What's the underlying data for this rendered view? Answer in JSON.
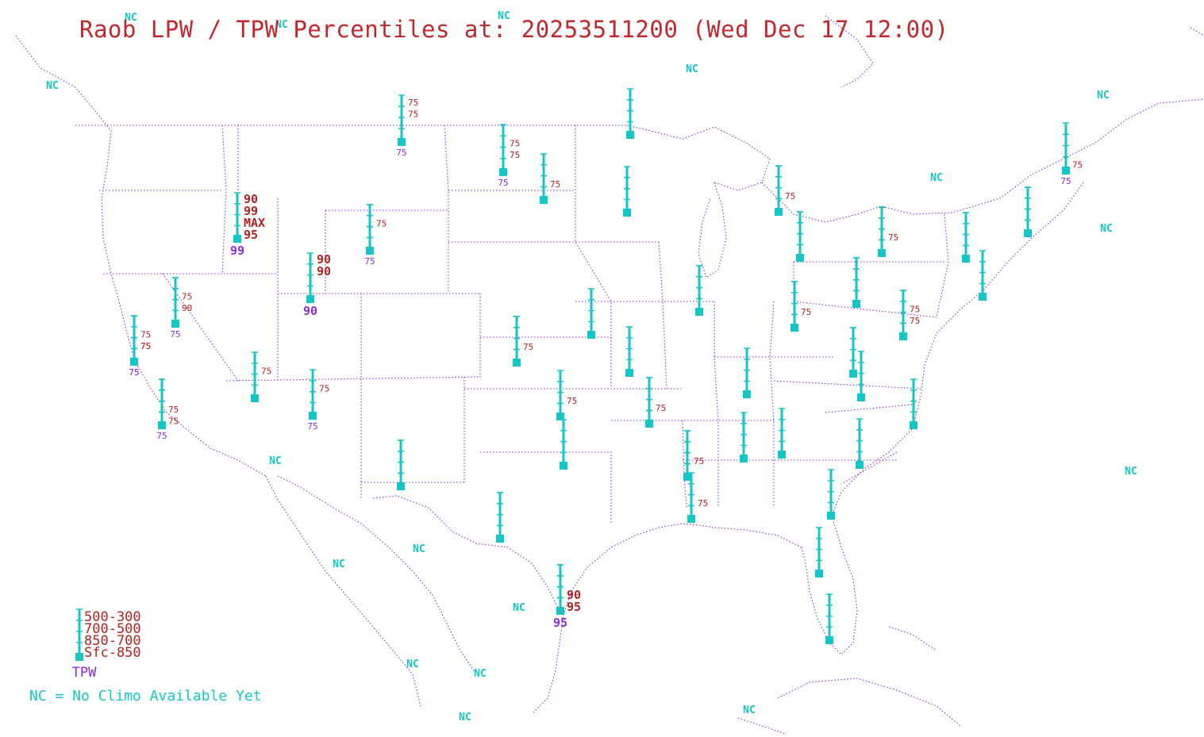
{
  "title": "Raob LPW / TPW Percentiles at: 20253511200 (Wed Dec 17 12:00)",
  "colors": {
    "title": "#c0282d",
    "layer_label": "#b22222",
    "tpw_label": "#8a2be2",
    "station": "#15c6c6",
    "nc": "#15c6c6",
    "borders": "#8a2be2"
  },
  "legend": {
    "layers": [
      "500-300",
      "700-500",
      "850-700",
      "Sfc-850"
    ],
    "tpw": "TPW",
    "nc_note": "NC = No Climo Available Yet"
  },
  "nc_label": "NC",
  "stations": [
    {
      "id": "s01",
      "layers": [
        "75",
        "75",
        "",
        ""
      ],
      "tpw": "75"
    },
    {
      "id": "s02",
      "layers": [
        "",
        "75",
        "75",
        ""
      ],
      "tpw": "75"
    },
    {
      "id": "s03",
      "layers": [
        "",
        "",
        "75",
        ""
      ],
      "tpw": ""
    },
    {
      "id": "s04",
      "layers": [
        "",
        "",
        "",
        ""
      ],
      "tpw": ""
    },
    {
      "id": "s05",
      "layers": [
        "",
        "",
        "",
        ""
      ],
      "tpw": ""
    },
    {
      "id": "s06",
      "layers": [
        "",
        "",
        "",
        "75"
      ],
      "tpw": "75"
    },
    {
      "id": "s07",
      "layers": [
        "90",
        "99",
        "MAX",
        "95"
      ],
      "tpw": "99"
    },
    {
      "id": "s08",
      "layers": [
        "",
        "75",
        "",
        ""
      ],
      "tpw": "75"
    },
    {
      "id": "s09",
      "layers": [
        "90",
        "90",
        "",
        ""
      ],
      "tpw": "90"
    },
    {
      "id": "s10",
      "layers": [
        "",
        "75",
        "90",
        ""
      ],
      "tpw": "75"
    },
    {
      "id": "s11",
      "layers": [
        "",
        "75",
        "75",
        ""
      ],
      "tpw": "75"
    },
    {
      "id": "s12",
      "layers": [
        "",
        "75",
        "",
        ""
      ],
      "tpw": ""
    },
    {
      "id": "s13",
      "layers": [
        "",
        "75",
        "",
        ""
      ],
      "tpw": "75"
    },
    {
      "id": "s14",
      "layers": [
        "",
        "",
        "75",
        "75"
      ],
      "tpw": "75"
    },
    {
      "id": "s15",
      "layers": [
        "",
        "",
        "",
        ""
      ],
      "tpw": ""
    },
    {
      "id": "s16",
      "layers": [
        "",
        "",
        "75",
        ""
      ],
      "tpw": ""
    },
    {
      "id": "s17",
      "layers": [
        "",
        "",
        "",
        ""
      ],
      "tpw": ""
    },
    {
      "id": "s18",
      "layers": [
        "",
        "",
        "",
        ""
      ],
      "tpw": ""
    },
    {
      "id": "s19",
      "layers": [
        "",
        "",
        "75",
        ""
      ],
      "tpw": ""
    },
    {
      "id": "s20",
      "layers": [
        "",
        "",
        "75",
        ""
      ],
      "tpw": ""
    },
    {
      "id": "s21",
      "layers": [
        "",
        "",
        "",
        ""
      ],
      "tpw": ""
    },
    {
      "id": "s22",
      "layers": [
        "",
        "",
        "75",
        ""
      ],
      "tpw": ""
    },
    {
      "id": "s23",
      "layers": [
        "",
        "",
        "",
        ""
      ],
      "tpw": ""
    },
    {
      "id": "s24",
      "layers": [
        "",
        "",
        "",
        ""
      ],
      "tpw": ""
    },
    {
      "id": "s25",
      "layers": [
        "",
        "",
        "75",
        ""
      ],
      "tpw": ""
    },
    {
      "id": "s26",
      "layers": [
        "",
        "",
        "",
        ""
      ],
      "tpw": ""
    },
    {
      "id": "s27",
      "layers": [
        "",
        "",
        "",
        ""
      ],
      "tpw": ""
    },
    {
      "id": "s28",
      "layers": [
        "",
        "75",
        "75",
        ""
      ],
      "tpw": ""
    },
    {
      "id": "s29",
      "layers": [
        "",
        "",
        "",
        ""
      ],
      "tpw": ""
    },
    {
      "id": "s30",
      "layers": [
        "",
        "",
        "",
        ""
      ],
      "tpw": ""
    },
    {
      "id": "s31",
      "layers": [
        "",
        "",
        "",
        ""
      ],
      "tpw": ""
    },
    {
      "id": "s32",
      "layers": [
        "",
        "",
        "",
        ""
      ],
      "tpw": ""
    },
    {
      "id": "s33",
      "layers": [
        "",
        "",
        "",
        ""
      ],
      "tpw": ""
    },
    {
      "id": "s34",
      "layers": [
        "",
        "",
        "",
        ""
      ],
      "tpw": ""
    },
    {
      "id": "s35",
      "layers": [
        "",
        "",
        "",
        ""
      ],
      "tpw": ""
    },
    {
      "id": "s36",
      "layers": [
        "",
        "",
        "",
        ""
      ],
      "tpw": ""
    },
    {
      "id": "s37",
      "layers": [
        "",
        "",
        "",
        ""
      ],
      "tpw": ""
    },
    {
      "id": "s38",
      "layers": [
        "",
        "",
        "",
        ""
      ],
      "tpw": ""
    },
    {
      "id": "s39",
      "layers": [
        "",
        "",
        "75",
        ""
      ],
      "tpw": ""
    },
    {
      "id": "s40",
      "layers": [
        "",
        "",
        "",
        ""
      ],
      "tpw": ""
    },
    {
      "id": "s41",
      "layers": [
        "",
        "",
        "",
        ""
      ],
      "tpw": ""
    },
    {
      "id": "s42",
      "layers": [
        "",
        "",
        "",
        ""
      ],
      "tpw": ""
    },
    {
      "id": "s43",
      "layers": [
        "",
        "",
        "",
        ""
      ],
      "tpw": ""
    },
    {
      "id": "s44",
      "layers": [
        "",
        "",
        "",
        ""
      ],
      "tpw": ""
    },
    {
      "id": "s45",
      "layers": [
        "",
        "",
        "",
        ""
      ],
      "tpw": ""
    },
    {
      "id": "s46",
      "layers": [
        "",
        "",
        "",
        ""
      ],
      "tpw": ""
    },
    {
      "id": "s47",
      "layers": [
        "",
        "",
        "",
        ""
      ],
      "tpw": ""
    },
    {
      "id": "s48",
      "layers": [
        "",
        "",
        "",
        ""
      ],
      "tpw": ""
    },
    {
      "id": "s49",
      "layers": [
        "",
        "",
        "",
        ""
      ],
      "tpw": ""
    },
    {
      "id": "s50",
      "layers": [
        "",
        "",
        "",
        ""
      ],
      "tpw": ""
    },
    {
      "id": "s51",
      "layers": [
        "",
        "",
        "75",
        ""
      ],
      "tpw": ""
    },
    {
      "id": "s52",
      "layers": [
        "",
        "",
        "",
        ""
      ],
      "tpw": ""
    },
    {
      "id": "s53",
      "layers": [
        "",
        "",
        "",
        ""
      ],
      "tpw": ""
    },
    {
      "id": "s54",
      "layers": [
        "",
        "",
        "",
        ""
      ],
      "tpw": ""
    },
    {
      "id": "s55",
      "layers": [
        "",
        "",
        "",
        ""
      ],
      "tpw": ""
    },
    {
      "id": "s56",
      "layers": [
        "",
        "",
        "",
        ""
      ],
      "tpw": ""
    },
    {
      "id": "s57",
      "layers": [
        "",
        "",
        "",
        ""
      ],
      "tpw": ""
    },
    {
      "id": "s58",
      "layers": [
        "",
        "",
        "",
        ""
      ],
      "tpw": ""
    },
    {
      "id": "s59",
      "layers": [
        "",
        "",
        "75",
        ""
      ],
      "tpw": ""
    },
    {
      "id": "s60",
      "layers": [
        "",
        "",
        "90",
        "95"
      ],
      "tpw": "95"
    },
    {
      "id": "s61",
      "layers": [
        "",
        "",
        "",
        ""
      ],
      "tpw": ""
    },
    {
      "id": "s62",
      "layers": [
        "",
        "",
        "",
        ""
      ],
      "tpw": ""
    },
    {
      "id": "s63",
      "layers": [
        "",
        "",
        "75",
        ""
      ],
      "tpw": "75"
    },
    {
      "id": "s64",
      "layers": [
        "",
        "",
        "",
        ""
      ],
      "tpw": ""
    },
    {
      "id": "s65",
      "layers": [
        "",
        "",
        "",
        ""
      ],
      "tpw": ""
    }
  ]
}
